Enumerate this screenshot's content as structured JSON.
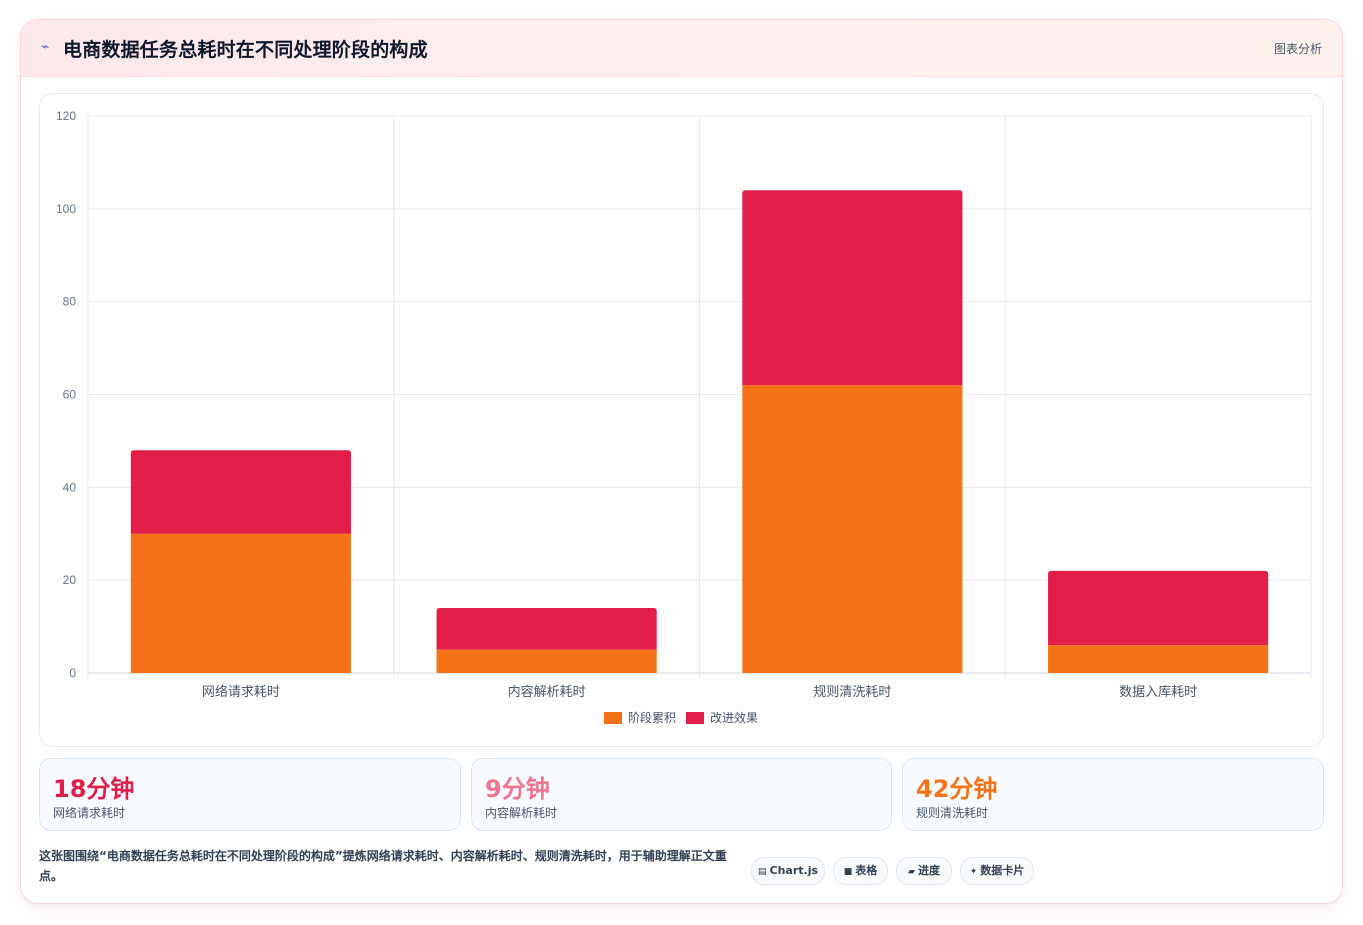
{
  "header": {
    "icon": "trend-line-icon",
    "title": "电商数据任务总耗时在不同处理阶段的构成",
    "tag": "图表分析"
  },
  "chart_data": {
    "type": "bar",
    "stacked": true,
    "categories": [
      "网络请求耗时",
      "内容解析耗时",
      "规则清洗耗时",
      "数据入库耗时"
    ],
    "series": [
      {
        "name": "阶段累积",
        "values": [
          30,
          5,
          62,
          6
        ],
        "color": "#f57317"
      },
      {
        "name": "改进效果",
        "values": [
          18,
          9,
          42,
          16
        ],
        "color": "#e11d48"
      }
    ],
    "ylim": [
      0,
      120
    ],
    "yticks": [
      0,
      20,
      40,
      60,
      80,
      100,
      120
    ],
    "grid": true,
    "legend": "bottom"
  },
  "stats": [
    {
      "value": "18分钟",
      "label": "网络请求耗时",
      "color": "#e11d48"
    },
    {
      "value": "9分钟",
      "label": "内容解析耗时",
      "color": "#f0758e"
    },
    {
      "value": "42分钟",
      "label": "规则清洗耗时",
      "color": "#f57317"
    }
  ],
  "description": "这张图围绕“电商数据任务总耗时在不同处理阶段的构成”提炼网络请求耗时、内容解析耗时、规则清洗耗时，用于辅助理解正文重点。",
  "chips": [
    {
      "icon": "chart-icon",
      "label": "Chart.js"
    },
    {
      "icon": "table-icon",
      "label": "表格"
    },
    {
      "icon": "progress-icon",
      "label": "进度"
    },
    {
      "icon": "sparkle-icon",
      "label": "数据卡片"
    }
  ]
}
